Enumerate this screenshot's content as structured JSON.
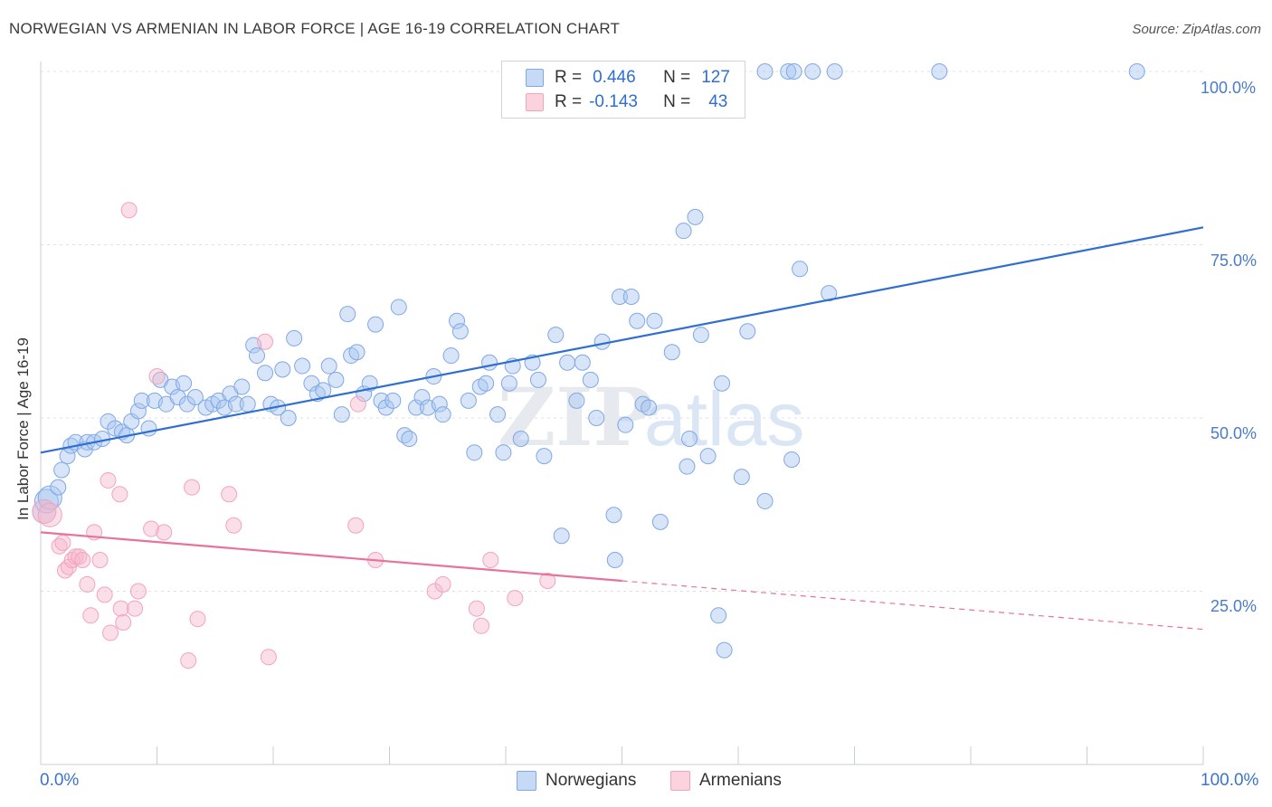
{
  "title": "NORWEGIAN VS ARMENIAN IN LABOR FORCE | AGE 16-19 CORRELATION CHART",
  "source": "Source: ZipAtlas.com",
  "watermark": "ZIPatlas",
  "legend": {
    "r_label": "R =",
    "n_label": "N =",
    "rows": [
      {
        "r": "0.446",
        "n": "127",
        "color": "#a9c6ef"
      },
      {
        "r": "-0.143",
        "n": "43",
        "color": "#f7b9cc"
      }
    ]
  },
  "chart_data": {
    "type": "scatter",
    "title": "NORWEGIAN VS ARMENIAN IN LABOR FORCE | AGE 16-19 CORRELATION CHART",
    "xlabel": "",
    "ylabel": "In Labor Force | Age 16-19",
    "xlim": [
      0,
      100
    ],
    "ylim": [
      0,
      100
    ],
    "x_tick_labels": [
      "0.0%",
      "100.0%"
    ],
    "y_tick_labels": [
      "25.0%",
      "50.0%",
      "75.0%",
      "100.0%"
    ],
    "y_ticks": [
      25,
      50,
      75,
      100
    ],
    "grid": true,
    "series": [
      {
        "name": "Norwegians",
        "color": "#7fa8e6",
        "trend_color": "#2f6fd0",
        "trend": {
          "x0": 0,
          "y0": 45,
          "x1": 100,
          "y1": 77.5
        },
        "points": [
          [
            0.3,
            36.5
          ],
          [
            0.5,
            38
          ],
          [
            0.8,
            38.5
          ],
          [
            1.5,
            40
          ],
          [
            1.8,
            42.5
          ],
          [
            2.3,
            44.5
          ],
          [
            2.6,
            46
          ],
          [
            3,
            46.5
          ],
          [
            3.8,
            45.5
          ],
          [
            4,
            46.5
          ],
          [
            4.6,
            46.5
          ],
          [
            5.3,
            47
          ],
          [
            5.8,
            49.5
          ],
          [
            6.4,
            48.5
          ],
          [
            7,
            48
          ],
          [
            7.4,
            47.5
          ],
          [
            7.8,
            49.5
          ],
          [
            8.4,
            51
          ],
          [
            8.7,
            52.5
          ],
          [
            9.3,
            48.5
          ],
          [
            9.8,
            52.5
          ],
          [
            10.3,
            55.5
          ],
          [
            10.8,
            52
          ],
          [
            11.3,
            54.5
          ],
          [
            11.8,
            53
          ],
          [
            12.3,
            55
          ],
          [
            12.6,
            52
          ],
          [
            13.3,
            53
          ],
          [
            14.2,
            51.5
          ],
          [
            14.8,
            52
          ],
          [
            15.3,
            52.5
          ],
          [
            15.8,
            51.5
          ],
          [
            16.3,
            53.5
          ],
          [
            16.8,
            52
          ],
          [
            17.3,
            54.5
          ],
          [
            17.8,
            52
          ],
          [
            18.3,
            60.5
          ],
          [
            18.6,
            59
          ],
          [
            19.3,
            56.5
          ],
          [
            19.8,
            52
          ],
          [
            20.4,
            51.5
          ],
          [
            20.8,
            57
          ],
          [
            21.3,
            50
          ],
          [
            21.8,
            61.5
          ],
          [
            22.5,
            57.5
          ],
          [
            23.3,
            55
          ],
          [
            23.8,
            53.5
          ],
          [
            24.3,
            54
          ],
          [
            24.8,
            57.5
          ],
          [
            25.4,
            55.5
          ],
          [
            25.9,
            50.5
          ],
          [
            26.4,
            65
          ],
          [
            26.7,
            59
          ],
          [
            27.2,
            59.5
          ],
          [
            27.8,
            53.5
          ],
          [
            28.3,
            55
          ],
          [
            28.8,
            63.5
          ],
          [
            29.3,
            52.5
          ],
          [
            29.7,
            51.5
          ],
          [
            30.3,
            52.5
          ],
          [
            30.8,
            66
          ],
          [
            31.3,
            47.5
          ],
          [
            31.7,
            47
          ],
          [
            32.3,
            51.5
          ],
          [
            32.8,
            53
          ],
          [
            33.3,
            51.5
          ],
          [
            33.8,
            56
          ],
          [
            34.3,
            52
          ],
          [
            34.6,
            50.5
          ],
          [
            35.3,
            59
          ],
          [
            35.8,
            64
          ],
          [
            36.1,
            62.5
          ],
          [
            36.8,
            52.5
          ],
          [
            37.3,
            45
          ],
          [
            37.8,
            54.5
          ],
          [
            38.3,
            55
          ],
          [
            38.6,
            58
          ],
          [
            39.3,
            50.5
          ],
          [
            39.8,
            45
          ],
          [
            40.3,
            55
          ],
          [
            40.6,
            57.5
          ],
          [
            41.3,
            47
          ],
          [
            42.3,
            58
          ],
          [
            42.8,
            55.5
          ],
          [
            43.3,
            44.5
          ],
          [
            44.3,
            62
          ],
          [
            44.8,
            33
          ],
          [
            45.3,
            58
          ],
          [
            46.1,
            52.5
          ],
          [
            46.6,
            58
          ],
          [
            47.3,
            55.5
          ],
          [
            47.8,
            50
          ],
          [
            48.3,
            61
          ],
          [
            49.3,
            36
          ],
          [
            49.4,
            29.5
          ],
          [
            49.8,
            67.5
          ],
          [
            50.3,
            49
          ],
          [
            50.8,
            67.5
          ],
          [
            51.3,
            64
          ],
          [
            51.8,
            52
          ],
          [
            52.3,
            51.5
          ],
          [
            52.8,
            64
          ],
          [
            53.3,
            35
          ],
          [
            54.3,
            59.5
          ],
          [
            55.3,
            77
          ],
          [
            55.6,
            43
          ],
          [
            55.8,
            47
          ],
          [
            56.3,
            79
          ],
          [
            56.8,
            62
          ],
          [
            57.4,
            44.5
          ],
          [
            58.3,
            21.5
          ],
          [
            58.6,
            55
          ],
          [
            58.8,
            16.5
          ],
          [
            60.3,
            41.5
          ],
          [
            60.8,
            62.5
          ],
          [
            62.3,
            38
          ],
          [
            64.6,
            44
          ],
          [
            65.3,
            71.5
          ],
          [
            67.8,
            68
          ],
          [
            62.3,
            100
          ],
          [
            64.3,
            100
          ],
          [
            64.8,
            100
          ],
          [
            66.4,
            100
          ],
          [
            68.3,
            100
          ],
          [
            77.3,
            100
          ],
          [
            94.3,
            100
          ]
        ]
      },
      {
        "name": "Armenians",
        "color": "#f2a4bc",
        "trend_color": "#e8729a",
        "trend": {
          "x0": 0,
          "y0": 33.5,
          "x1": 50,
          "y1": 26.5
        },
        "trend_extension": {
          "x0": 50,
          "y0": 26.5,
          "x1": 100,
          "y1": 19.5
        },
        "points": [
          [
            0.3,
            36.5
          ],
          [
            0.8,
            36
          ],
          [
            1.6,
            31.5
          ],
          [
            1.9,
            32
          ],
          [
            2.1,
            28
          ],
          [
            2.4,
            28.5
          ],
          [
            2.7,
            29.5
          ],
          [
            3.0,
            30
          ],
          [
            3.3,
            30
          ],
          [
            3.6,
            29.5
          ],
          [
            4.0,
            26
          ],
          [
            4.3,
            21.5
          ],
          [
            4.6,
            33.5
          ],
          [
            5.1,
            29.5
          ],
          [
            5.5,
            24.5
          ],
          [
            5.8,
            41
          ],
          [
            6.0,
            19
          ],
          [
            6.8,
            39
          ],
          [
            6.9,
            22.5
          ],
          [
            7.1,
            20.5
          ],
          [
            7.6,
            80
          ],
          [
            8.1,
            22.5
          ],
          [
            8.4,
            25
          ],
          [
            9.5,
            34
          ],
          [
            10.0,
            56
          ],
          [
            10.6,
            33.5
          ],
          [
            12.7,
            15
          ],
          [
            13.0,
            40
          ],
          [
            13.5,
            21
          ],
          [
            16.2,
            39
          ],
          [
            16.6,
            34.5
          ],
          [
            19.6,
            15.5
          ],
          [
            19.3,
            61
          ],
          [
            27.1,
            34.5
          ],
          [
            27.3,
            52
          ],
          [
            28.8,
            29.5
          ],
          [
            33.9,
            25
          ],
          [
            34.6,
            26
          ],
          [
            37.5,
            22.5
          ],
          [
            37.9,
            20
          ],
          [
            38.7,
            29.5
          ],
          [
            40.8,
            24
          ],
          [
            43.6,
            26.5
          ]
        ]
      }
    ]
  },
  "bottom_legend": [
    "Norwegians",
    "Armenians"
  ]
}
